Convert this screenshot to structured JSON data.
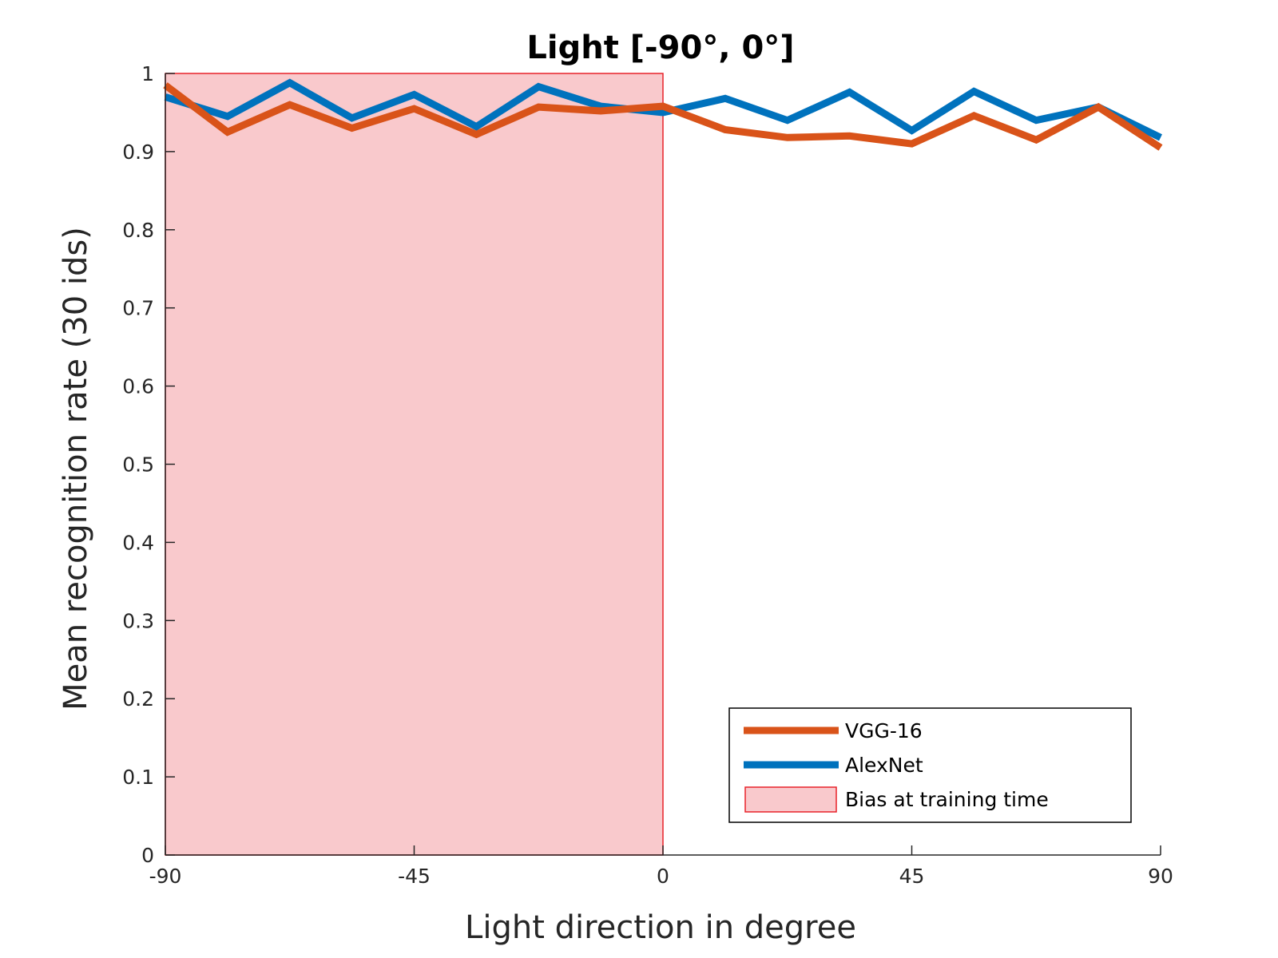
{
  "chart_data": {
    "type": "line",
    "title": "Light [-90°, 0°]",
    "xlabel": "Light direction in degree",
    "ylabel": "Mean recognition rate (30 ids)",
    "xlim": [
      -90,
      90
    ],
    "ylim": [
      0,
      1
    ],
    "xticks": [
      -90,
      -45,
      0,
      45,
      90
    ],
    "xtick_labels": [
      "-90",
      "-45",
      "0",
      "45",
      "90"
    ],
    "yticks": [
      0,
      0.1,
      0.2,
      0.3,
      0.4,
      0.5,
      0.6,
      0.7,
      0.8,
      0.9,
      1
    ],
    "ytick_labels": [
      "0",
      "0.1",
      "0.2",
      "0.3",
      "0.4",
      "0.5",
      "0.6",
      "0.7",
      "0.8",
      "0.9",
      "1"
    ],
    "x": [
      -90,
      -78.75,
      -67.5,
      -56.25,
      -45,
      -33.75,
      -22.5,
      -11.25,
      0,
      11.25,
      22.5,
      33.75,
      45,
      56.25,
      67.5,
      78.75,
      90
    ],
    "series": [
      {
        "name": "VGG-16",
        "color": "#D95319",
        "values": [
          0.985,
          0.925,
          0.96,
          0.93,
          0.955,
          0.922,
          0.957,
          0.952,
          0.958,
          0.928,
          0.918,
          0.92,
          0.91,
          0.946,
          0.915,
          0.957,
          0.905
        ]
      },
      {
        "name": "AlexNet",
        "color": "#0072BD",
        "values": [
          0.97,
          0.945,
          0.988,
          0.943,
          0.973,
          0.932,
          0.983,
          0.958,
          0.95,
          0.968,
          0.94,
          0.976,
          0.927,
          0.977,
          0.94,
          0.957,
          0.918
        ]
      }
    ],
    "shaded_region": {
      "name": "Bias at training time",
      "x_range": [
        -90,
        0
      ],
      "y_range": [
        0,
        1
      ],
      "fill": "#F9C9CC",
      "edge": "#E8222A"
    },
    "legend_position": "bottom-right",
    "grid": false
  }
}
